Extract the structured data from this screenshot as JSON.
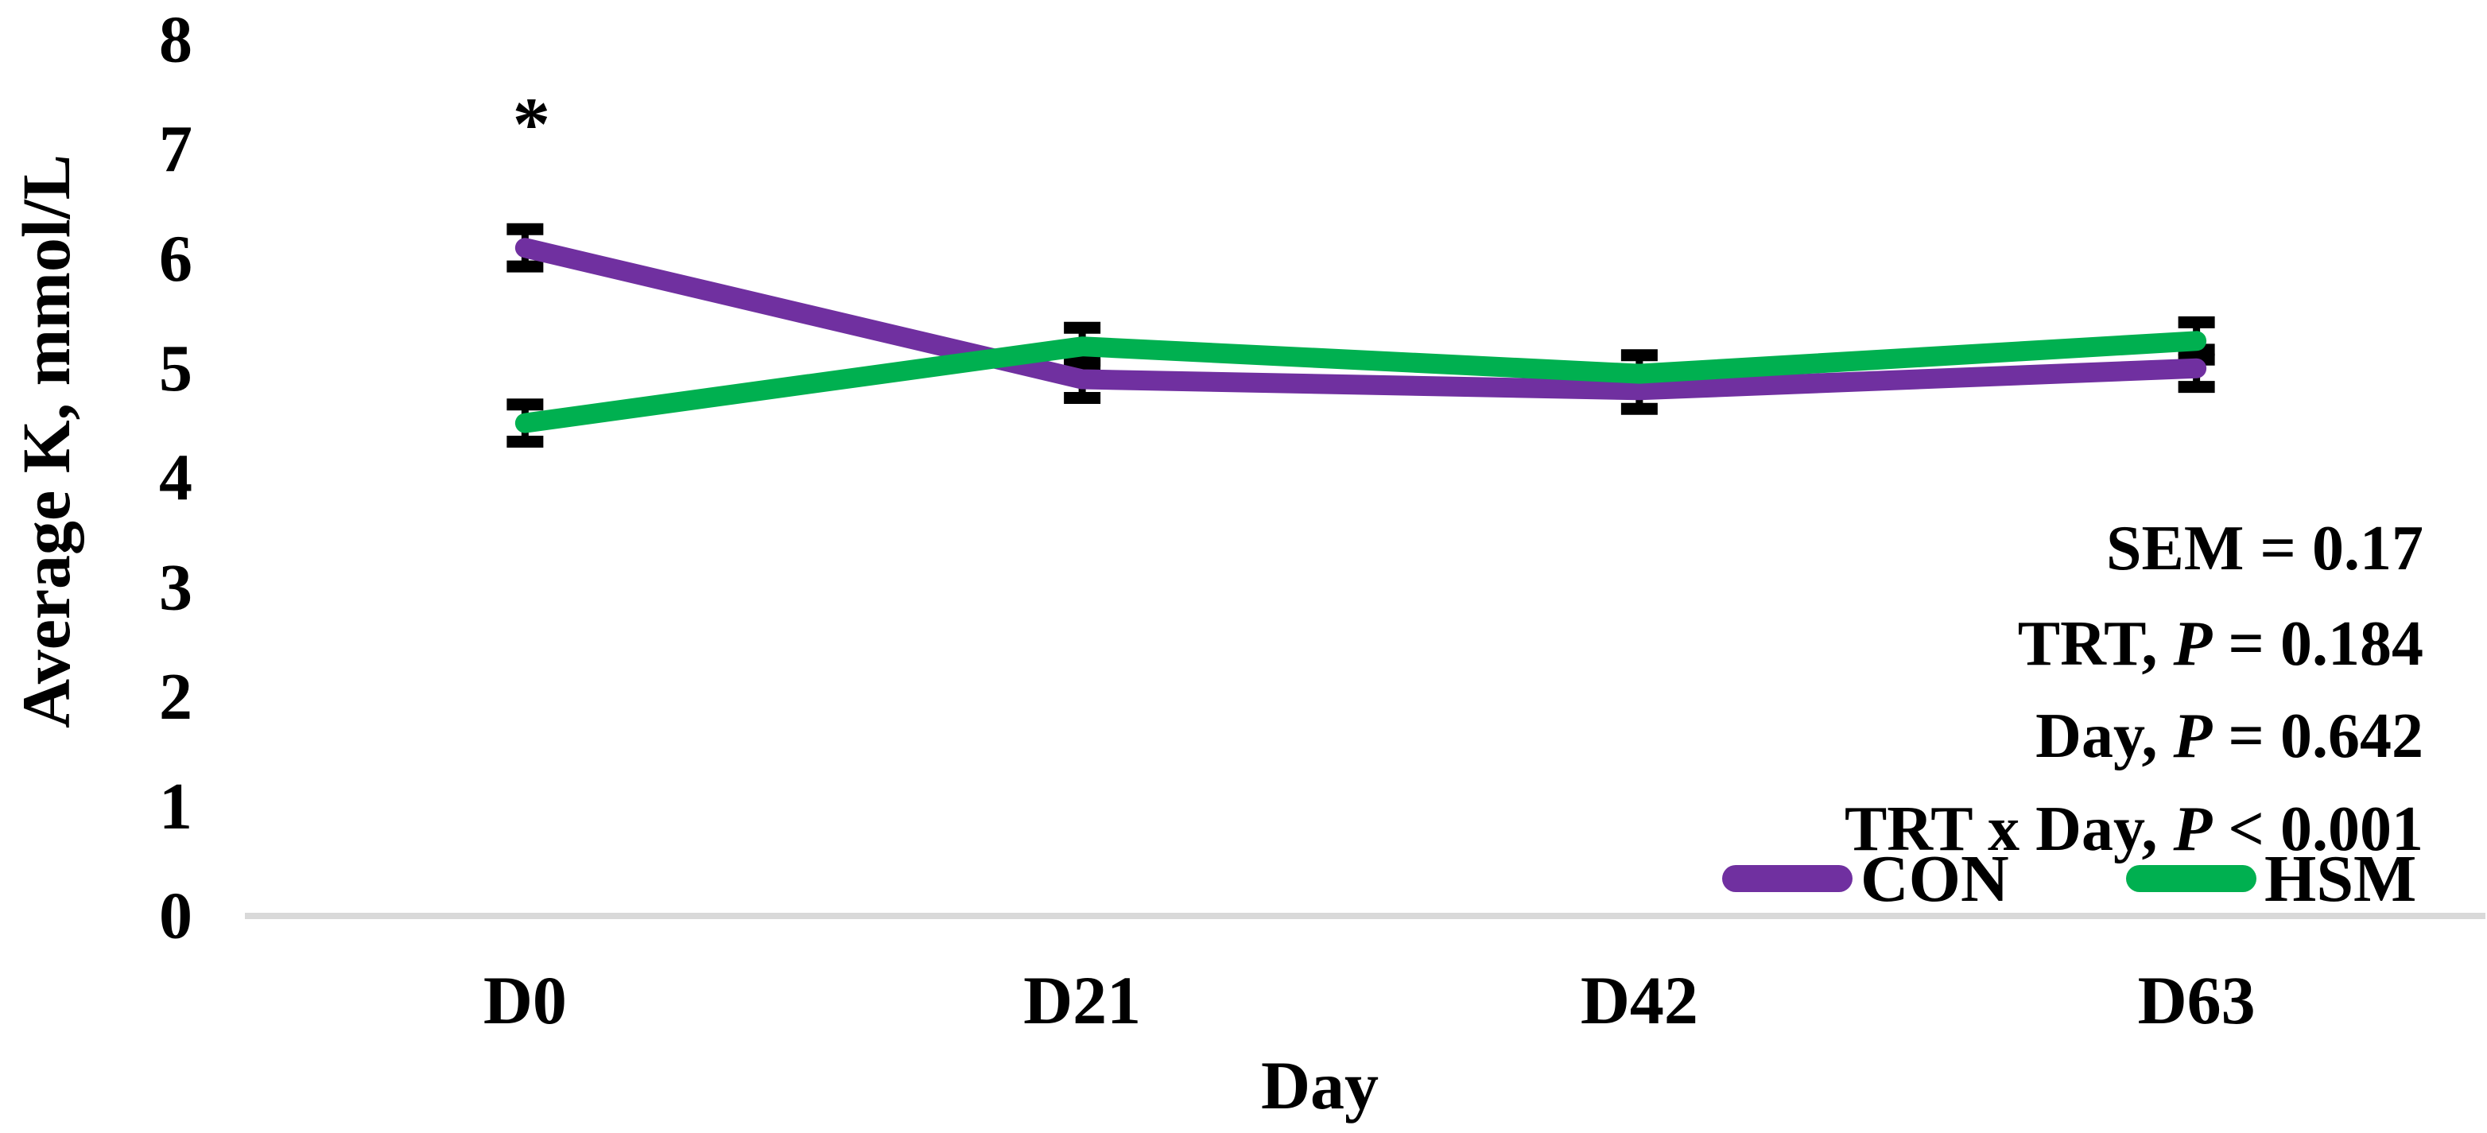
{
  "chart_data": {
    "type": "line",
    "title": "",
    "xlabel": "Day",
    "ylabel": "Average K, mmol/L",
    "categories": [
      "D0",
      "D21",
      "D42",
      "D63"
    ],
    "y_ticks": [
      0,
      1,
      2,
      3,
      4,
      5,
      6,
      7,
      8
    ],
    "ylim": [
      0,
      8
    ],
    "grid": false,
    "legend_position": "bottom-right",
    "error_bar_sem": 0.17,
    "series": [
      {
        "name": "CON",
        "color": "#7030A0",
        "values": [
          6.1,
          4.9,
          4.8,
          5.0
        ]
      },
      {
        "name": "HSM",
        "color": "#00B050",
        "values": [
          4.5,
          5.2,
          4.95,
          5.25
        ]
      }
    ],
    "significance": {
      "label": "*",
      "category": "D0"
    },
    "annotations": [
      {
        "prefix": "SEM = 0.17",
        "italic": "",
        "suffix": ""
      },
      {
        "prefix": "TRT, ",
        "italic": "P",
        "suffix": " = 0.184"
      },
      {
        "prefix": "Day, ",
        "italic": "P",
        "suffix": " = 0.642"
      },
      {
        "prefix": "TRT x Day, ",
        "italic": "P",
        "suffix": " < 0.001"
      }
    ],
    "colors": {
      "axis_line": "#D9D9D9",
      "error_bar": "#000000",
      "text": "#000000",
      "background": "#FFFFFF"
    }
  }
}
